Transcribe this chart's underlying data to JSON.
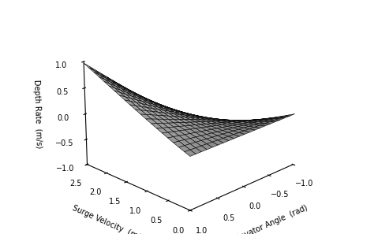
{
  "surge_min": 0,
  "surge_max": 2.5,
  "surge_steps": 20,
  "elevator_min": -1,
  "elevator_max": 1,
  "elevator_steps": 20,
  "zlim": [
    -1,
    1
  ],
  "xlabel": "Surge Velocity  (m/s)",
  "ylabel": "Elevator Angle  (rad)",
  "zlabel": "Depth Rate  (m/s)",
  "xticks": [
    0,
    0.5,
    1,
    1.5,
    2,
    2.5
  ],
  "yticks": [
    1,
    0.5,
    0,
    -0.5,
    -1
  ],
  "zticks": [
    -1,
    -0.5,
    0,
    0.5,
    1
  ],
  "surface_facecolor": "#b0b0b0",
  "edge_color": "#000000",
  "linewidth": 0.4,
  "elev": 22,
  "azim": -135,
  "figsize": [
    4.74,
    2.97
  ],
  "dpi": 100
}
